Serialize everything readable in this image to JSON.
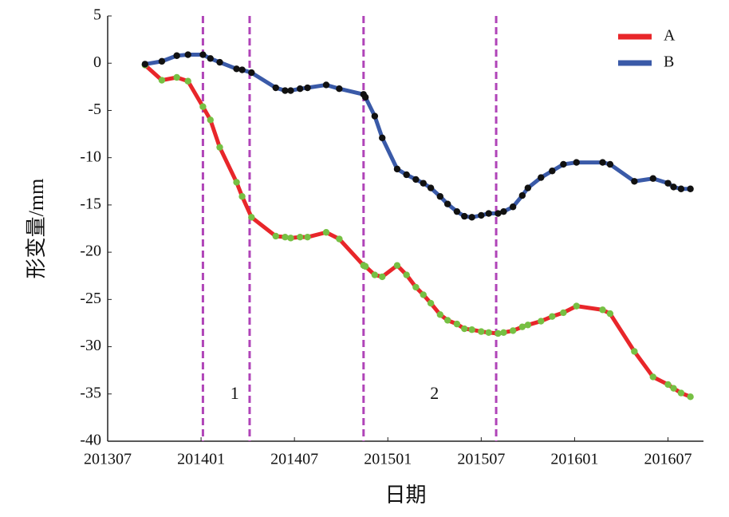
{
  "chart_data": {
    "type": "line",
    "x_label": "日期",
    "y_label": "形变量/mm",
    "x": [
      2013.7,
      2013.79,
      2013.87,
      2013.93,
      2014.01,
      2014.05,
      2014.1,
      2014.19,
      2014.22,
      2014.27,
      2014.4,
      2014.45,
      2014.48,
      2014.53,
      2014.57,
      2014.67,
      2014.74,
      2014.87,
      2014.88,
      2014.93,
      2014.97,
      2015.05,
      2015.1,
      2015.15,
      2015.19,
      2015.23,
      2015.28,
      2015.32,
      2015.37,
      2015.41,
      2015.45,
      2015.5,
      2015.54,
      2015.59,
      2015.62,
      2015.67,
      2015.72,
      2015.75,
      2015.82,
      2015.88,
      2015.94,
      2016.01,
      2016.15,
      2016.19,
      2016.32,
      2016.42,
      2016.5,
      2016.53,
      2016.57,
      2016.62
    ],
    "series": [
      {
        "name": "A",
        "color": "#e8262a",
        "marker_color": "#76c043",
        "values": [
          -0.2,
          -1.8,
          -1.5,
          -1.9,
          -4.6,
          -6.0,
          -8.9,
          -12.6,
          -14.1,
          -16.3,
          -18.3,
          -18.4,
          -18.5,
          -18.4,
          -18.4,
          -17.9,
          -18.6,
          -21.4,
          -21.5,
          -22.4,
          -22.6,
          -21.4,
          -22.4,
          -23.7,
          -24.5,
          -25.4,
          -26.6,
          -27.2,
          -27.6,
          -28.1,
          -28.2,
          -28.4,
          -28.5,
          -28.6,
          -28.5,
          -28.3,
          -27.9,
          -27.7,
          -27.3,
          -26.8,
          -26.4,
          -25.7,
          -26.1,
          -26.5,
          -30.5,
          -33.2,
          -34.0,
          -34.4,
          -34.9,
          -35.3
        ]
      },
      {
        "name": "B",
        "color": "#3a5aa8",
        "marker_color": "#111111",
        "values": [
          -0.1,
          0.2,
          0.8,
          0.9,
          0.9,
          0.5,
          0.1,
          -0.6,
          -0.7,
          -1.0,
          -2.6,
          -2.9,
          -2.9,
          -2.7,
          -2.6,
          -2.3,
          -2.7,
          -3.3,
          -3.6,
          -5.6,
          -7.9,
          -11.2,
          -11.8,
          -12.3,
          -12.7,
          -13.2,
          -14.1,
          -14.9,
          -15.7,
          -16.2,
          -16.3,
          -16.1,
          -15.9,
          -15.9,
          -15.7,
          -15.2,
          -14.0,
          -13.2,
          -12.1,
          -11.4,
          -10.7,
          -10.5,
          -10.5,
          -10.7,
          -12.5,
          -12.2,
          -12.7,
          -13.1,
          -13.3,
          -13.3
        ]
      }
    ],
    "xlim": [
      2013.5,
      2016.69
    ],
    "xticks": [
      {
        "value": 2013.5,
        "label": "201307"
      },
      {
        "value": 2014.0,
        "label": "201401"
      },
      {
        "value": 2014.5,
        "label": "201407"
      },
      {
        "value": 2015.0,
        "label": "201501"
      },
      {
        "value": 2015.5,
        "label": "201507"
      },
      {
        "value": 2016.0,
        "label": "201601"
      },
      {
        "value": 2016.5,
        "label": "201607"
      }
    ],
    "ylim": [
      -40,
      5
    ],
    "yticks": [
      -40,
      -35,
      -30,
      -25,
      -20,
      -15,
      -10,
      -5,
      0,
      5
    ],
    "vlines": {
      "color": "#b044b8",
      "values": [
        2014.01,
        2014.26,
        2014.87,
        2015.58
      ]
    },
    "annotations": [
      {
        "text": "1",
        "x": 2014.18,
        "y": -35.1
      },
      {
        "text": "2",
        "x": 2015.25,
        "y": -35.1
      }
    ],
    "legend": "upper right"
  }
}
